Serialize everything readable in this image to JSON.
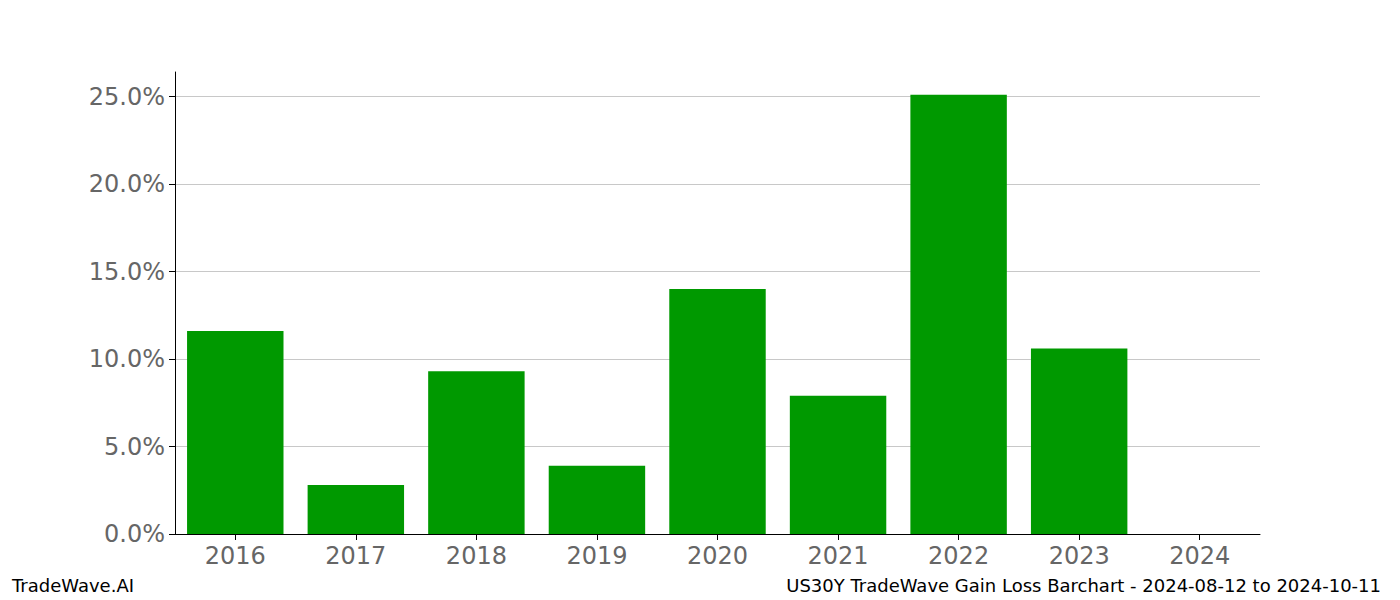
{
  "chart_data": {
    "type": "bar",
    "title": "US30Y TradeWave Gain Loss Barchart - 2024-08-12 to 2024-10-11",
    "annotations": [
      "TradeWave.AI"
    ],
    "categories": [
      "2016",
      "2017",
      "2018",
      "2019",
      "2020",
      "2021",
      "2022",
      "2023",
      "2024"
    ],
    "values": [
      11.6,
      2.8,
      9.3,
      3.9,
      14.0,
      7.9,
      25.1,
      10.6,
      0
    ],
    "color": "#009900",
    "ylim": [
      0,
      26.4
    ],
    "yticks": [
      {
        "value": 0,
        "label": "0.0%"
      },
      {
        "value": 5,
        "label": "5.0%"
      },
      {
        "value": 10,
        "label": "10.0%"
      },
      {
        "value": 15,
        "label": "15.0%"
      },
      {
        "value": 20,
        "label": "20.0%"
      },
      {
        "value": 25,
        "label": "25.0%"
      }
    ],
    "grid": true
  }
}
